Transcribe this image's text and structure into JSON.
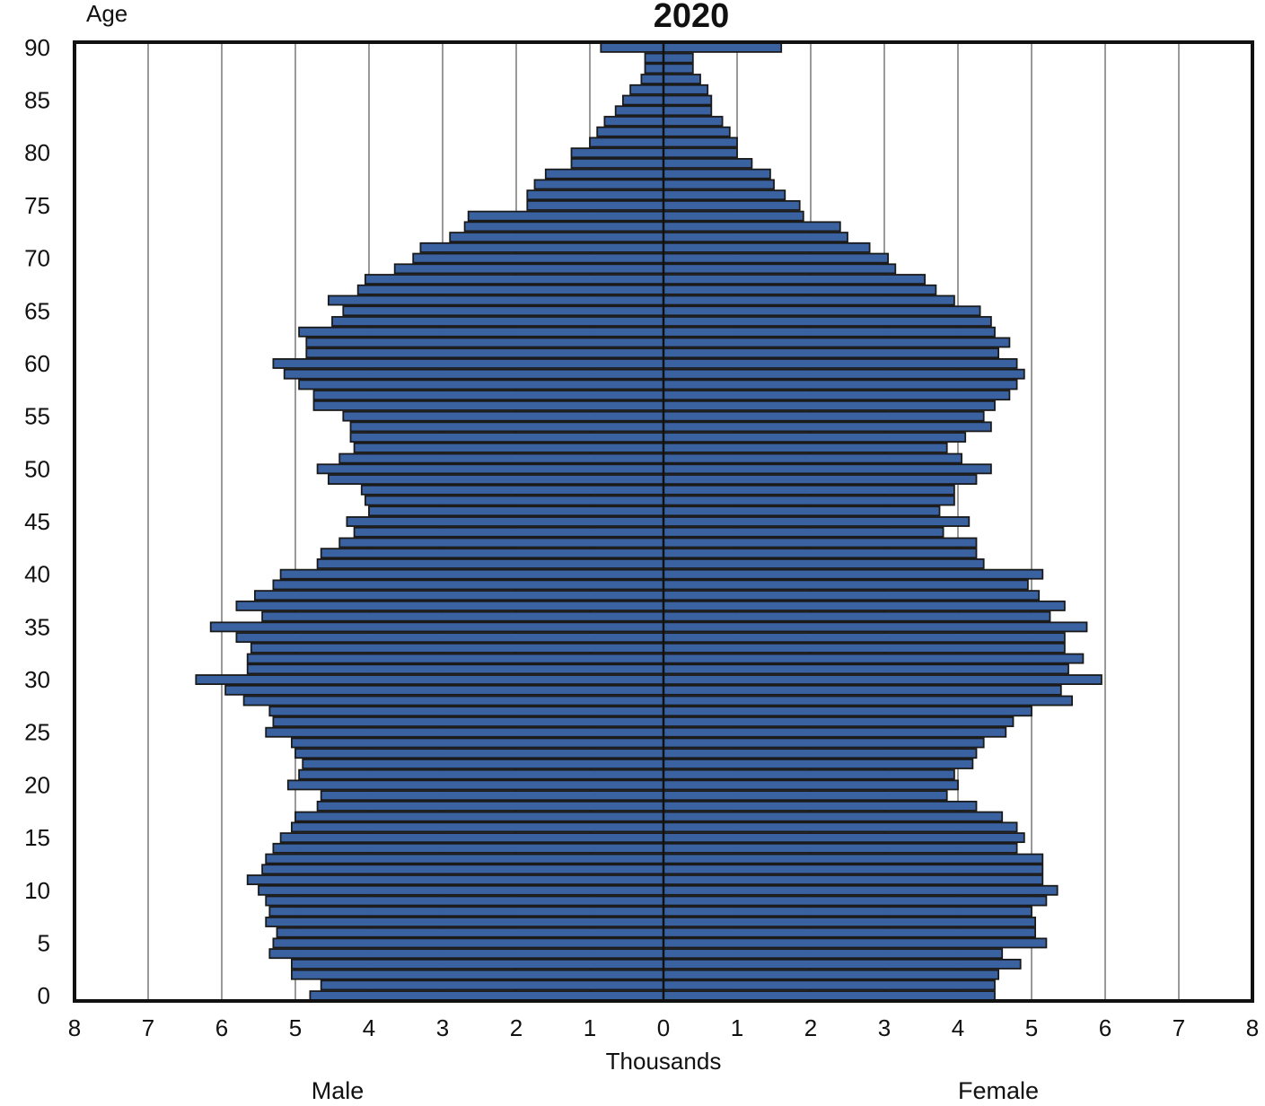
{
  "chart_data": {
    "type": "bar",
    "orientation": "horizontal-population-pyramid",
    "title": "2020",
    "ylabel": "Age",
    "xlabel": "Thousands",
    "left_label": "Male",
    "right_label": "Female",
    "ages": [
      0,
      1,
      2,
      3,
      4,
      5,
      6,
      7,
      8,
      9,
      10,
      11,
      12,
      13,
      14,
      15,
      16,
      17,
      18,
      19,
      20,
      21,
      22,
      23,
      24,
      25,
      26,
      27,
      28,
      29,
      30,
      31,
      32,
      33,
      34,
      35,
      36,
      37,
      38,
      39,
      40,
      41,
      42,
      43,
      44,
      45,
      46,
      47,
      48,
      49,
      50,
      51,
      52,
      53,
      54,
      55,
      56,
      57,
      58,
      59,
      60,
      61,
      62,
      63,
      64,
      65,
      66,
      67,
      68,
      69,
      70,
      71,
      72,
      73,
      74,
      75,
      76,
      77,
      78,
      79,
      80,
      81,
      82,
      83,
      84,
      85,
      86,
      87,
      88,
      89,
      90
    ],
    "y_ticks": [
      0,
      5,
      10,
      15,
      20,
      25,
      30,
      35,
      40,
      45,
      50,
      55,
      60,
      65,
      70,
      75,
      80,
      85,
      90
    ],
    "x_ticks": [
      8,
      7,
      6,
      5,
      4,
      3,
      2,
      1,
      0,
      1,
      2,
      3,
      4,
      5,
      6,
      7,
      8
    ],
    "xlim": [
      -8,
      8
    ],
    "grid": true,
    "bar_color": "#3a62a0",
    "bar_edge_color": "#1a1a1a",
    "series": [
      {
        "name": "Male",
        "values": [
          4.8,
          4.65,
          5.05,
          5.05,
          5.35,
          5.3,
          5.25,
          5.4,
          5.35,
          5.4,
          5.5,
          5.65,
          5.45,
          5.4,
          5.3,
          5.2,
          5.05,
          5.0,
          4.7,
          4.65,
          5.1,
          4.95,
          4.9,
          5.0,
          5.05,
          5.4,
          5.3,
          5.35,
          5.7,
          5.95,
          6.35,
          5.65,
          5.65,
          5.6,
          5.8,
          6.15,
          5.45,
          5.8,
          5.55,
          5.3,
          5.2,
          4.7,
          4.65,
          4.4,
          4.2,
          4.3,
          4.0,
          4.05,
          4.1,
          4.55,
          4.7,
          4.4,
          4.2,
          4.25,
          4.25,
          4.35,
          4.75,
          4.75,
          4.95,
          5.15,
          5.3,
          4.85,
          4.85,
          4.95,
          4.5,
          4.35,
          4.55,
          4.15,
          4.05,
          3.65,
          3.4,
          3.3,
          2.9,
          2.7,
          2.65,
          1.85,
          1.85,
          1.75,
          1.6,
          1.25,
          1.25,
          1.0,
          0.9,
          0.8,
          0.65,
          0.55,
          0.45,
          0.3,
          0.25,
          0.25,
          0.85
        ]
      },
      {
        "name": "Female",
        "values": [
          4.5,
          4.5,
          4.55,
          4.85,
          4.6,
          5.2,
          5.05,
          5.05,
          5.0,
          5.2,
          5.35,
          5.15,
          5.15,
          5.15,
          4.8,
          4.9,
          4.8,
          4.6,
          4.25,
          3.85,
          4.0,
          3.95,
          4.2,
          4.25,
          4.35,
          4.65,
          4.75,
          5.0,
          5.55,
          5.4,
          5.95,
          5.5,
          5.7,
          5.45,
          5.45,
          5.75,
          5.25,
          5.45,
          5.1,
          4.95,
          5.15,
          4.35,
          4.25,
          4.25,
          3.8,
          4.15,
          3.75,
          3.95,
          3.95,
          4.25,
          4.45,
          4.05,
          3.85,
          4.1,
          4.45,
          4.35,
          4.5,
          4.7,
          4.8,
          4.9,
          4.8,
          4.55,
          4.7,
          4.5,
          4.45,
          4.3,
          3.95,
          3.7,
          3.55,
          3.15,
          3.05,
          2.8,
          2.5,
          2.4,
          1.9,
          1.85,
          1.65,
          1.5,
          1.45,
          1.2,
          1.0,
          1.0,
          0.9,
          0.8,
          0.65,
          0.65,
          0.6,
          0.5,
          0.4,
          0.4,
          1.6
        ]
      }
    ]
  }
}
